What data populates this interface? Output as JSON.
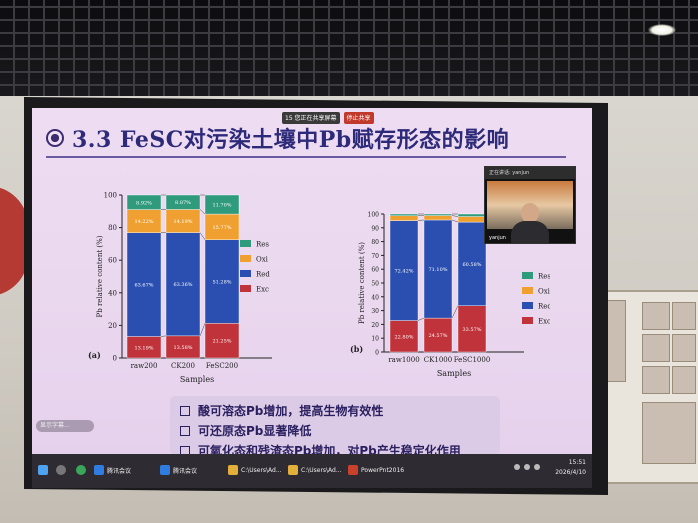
{
  "slide": {
    "title": "3.3 FeSC对污染土壤中Pb赋存形态的影响",
    "conclusions": [
      "酸可溶态Pb增加，提高生物有效性",
      "可还原态Pb显著降低",
      "可氧化态和残渣态Pb增加，对Pb产生稳定化作用"
    ],
    "caption_pill": "显示字幕..."
  },
  "meeting_bar": {
    "items": [
      "15 您正在共享屏幕",
      "停止共享"
    ]
  },
  "video": {
    "top_label": "正在讲话: yanjun",
    "name": "yanjun"
  },
  "taskbar": {
    "apps": [
      {
        "label": "腾讯会议",
        "color": "#2f7de1"
      },
      {
        "label": "腾讯会议",
        "color": "#2f7de1"
      },
      {
        "label": "C:\\Users\\Ad...",
        "color": "#e2b03a"
      },
      {
        "label": "C:\\Users\\Ad...",
        "color": "#e2b03a"
      },
      {
        "label": "PowerPnt2016",
        "color": "#c9412c"
      }
    ],
    "time": "15:51",
    "date": "2026/4/10"
  },
  "colors": {
    "Exc": "#c0333b",
    "Red": "#2b4fb0",
    "Oxi": "#f0a030",
    "Res": "#2f9a7c"
  },
  "chart_data": [
    {
      "type": "bar",
      "panel": "(a)",
      "stacked": true,
      "categories": [
        "raw200",
        "CK200",
        "FeSC200"
      ],
      "xlabel": "Samples",
      "ylabel": "Pb relative content (%)",
      "ylim": [
        0,
        100
      ],
      "yticks": [
        0,
        20,
        40,
        60,
        80,
        100
      ],
      "legend": [
        "Res",
        "Oxi",
        "Red",
        "Exc"
      ],
      "legend_position": "right",
      "series": [
        {
          "name": "Exc",
          "values": [
            13.19,
            13.58,
            21.25
          ],
          "labels": [
            "13.19%",
            "13.58%",
            "21.25%"
          ]
        },
        {
          "name": "Red",
          "values": [
            63.67,
            63.36,
            51.28
          ],
          "labels": [
            "63.67%",
            "63.36%",
            "51.28%"
          ]
        },
        {
          "name": "Oxi",
          "values": [
            14.22,
            14.19,
            15.77
          ],
          "labels": [
            "14.22%",
            "14.19%",
            "15.77%"
          ]
        },
        {
          "name": "Res",
          "values": [
            8.92,
            8.87,
            11.7
          ],
          "labels": [
            "8.92%",
            "8.87%",
            "11.70%"
          ]
        }
      ]
    },
    {
      "type": "bar",
      "panel": "(b)",
      "stacked": true,
      "categories": [
        "raw1000",
        "CK1000",
        "FeSC1000"
      ],
      "xlabel": "Samples",
      "ylabel": "Pb relative content (%)",
      "ylim": [
        0,
        100
      ],
      "yticks": [
        0,
        10,
        20,
        30,
        40,
        50,
        60,
        70,
        80,
        90,
        100
      ],
      "legend": [
        "Res",
        "Oxi",
        "Red",
        "Exc"
      ],
      "legend_position": "right",
      "series": [
        {
          "name": "Exc",
          "values": [
            22.8,
            24.57,
            33.57
          ],
          "labels": [
            "22.80%",
            "24.57%",
            "33.57%"
          ]
        },
        {
          "name": "Red",
          "values": [
            72.42,
            71.1,
            60.58
          ],
          "labels": [
            "72.42%",
            "71.10%",
            "60.58%"
          ]
        },
        {
          "name": "Oxi",
          "values": [
            3.5,
            3.2,
            4.0
          ],
          "labels": [
            "",
            "",
            ""
          ]
        },
        {
          "name": "Res",
          "values": [
            1.28,
            1.13,
            1.85
          ],
          "labels": [
            "",
            "",
            ""
          ]
        }
      ]
    }
  ]
}
